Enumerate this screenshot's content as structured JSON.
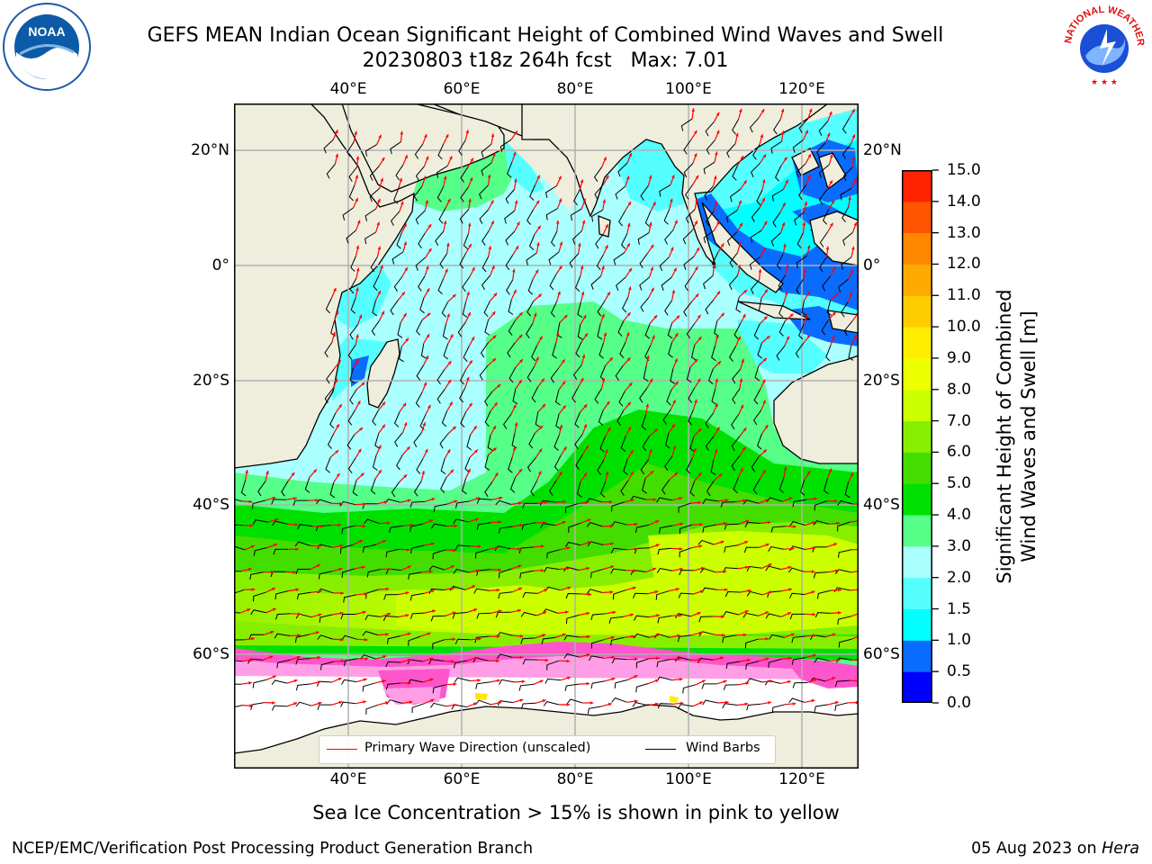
{
  "title": {
    "line1": "GEFS MEAN Indian Ocean Significant Height of Combined Wind Waves and Swell",
    "line2": "20230803 t18z 264h fcst   Max: 7.01"
  },
  "map": {
    "lon_ticks": [
      "40°E",
      "60°E",
      "80°E",
      "100°E",
      "120°E"
    ],
    "lat_ticks": [
      "20°N",
      "0°",
      "20°S",
      "40°S",
      "60°S"
    ],
    "lon_range": [
      20,
      130
    ],
    "lat_range": [
      -76,
      27
    ],
    "colors": {
      "land": "#efeedd",
      "grid": "#b0b0b0",
      "coast": "#000000"
    }
  },
  "colorbar": {
    "title": "Significant Height of Combined\nWind Waves and Swell [m]",
    "labels": [
      "0.0",
      "0.5",
      "1.0",
      "1.5",
      "2.0",
      "3.0",
      "4.0",
      "5.0",
      "6.0",
      "7.0",
      "8.0",
      "9.0",
      "10.0",
      "11.0",
      "12.0",
      "13.0",
      "14.0",
      "15.0"
    ],
    "colors": [
      "#0000ff",
      "#0a6cff",
      "#00ffff",
      "#55ffff",
      "#aaffff",
      "#55ff88",
      "#00e000",
      "#44dd00",
      "#88ee00",
      "#ccff00",
      "#eeff00",
      "#ffee00",
      "#ffcc00",
      "#ffaa00",
      "#ff8800",
      "#ff5500",
      "#ff2200"
    ]
  },
  "legend": {
    "wave_direction": "Primary Wave Direction (unscaled)",
    "wind_barbs": "Wind Barbs",
    "wave_color": "#ff0000",
    "barb_color": "#000000"
  },
  "subtitle": "Sea Ice Concentration > 15% is shown in pink to yellow",
  "footer": {
    "left": "NCEP/EMC/Verification Post Processing Product Generation Branch",
    "date": "05 Aug 2023 on ",
    "machine": "Hera"
  },
  "logos": {
    "noaa_text": "NOAA",
    "nws_text": "NATIONAL WEATHER SERVICE"
  },
  "map_data": {
    "wave_zones": [
      {
        "name": "southern-ocean-high",
        "level": "6.0-7.0"
      },
      {
        "name": "southern-ocean-mid",
        "level": "4.0-6.0"
      },
      {
        "name": "central-swell",
        "level": "3.0-4.0"
      },
      {
        "name": "tropical",
        "level": "2.0-3.0"
      },
      {
        "name": "coastal-seas",
        "level": "1.0-2.0"
      },
      {
        "name": "indonesian-seas",
        "level": "0.0-1.0"
      }
    ]
  }
}
